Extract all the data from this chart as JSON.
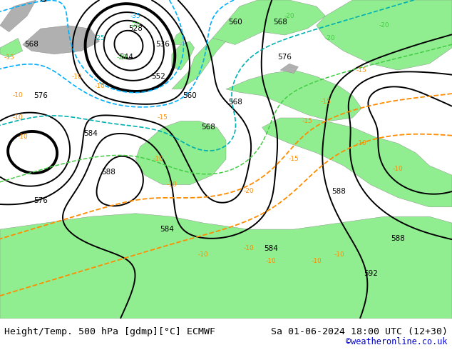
{
  "title_left": "Height/Temp. 500 hPa [gdmp][°C] ECMWF",
  "title_right": "Sa 01-06-2024 18:00 UTC (12+30)",
  "credit": "©weatheronline.co.uk",
  "credit_color": "#0000cc",
  "land_green_color": "#90ee90",
  "sea_color": "#c8c8c8",
  "geo_color": "#000000",
  "temp_warm_color": "#ff8c00",
  "temp_cold_teal_color": "#00b0b0",
  "temp_cold_cyan_color": "#00b0ff",
  "temp_green_color": "#44cc44",
  "figsize": [
    6.34,
    4.9
  ],
  "dpi": 100,
  "title_fontsize": 9.5,
  "credit_fontsize": 8.5,
  "label_fontsize": 7.5
}
